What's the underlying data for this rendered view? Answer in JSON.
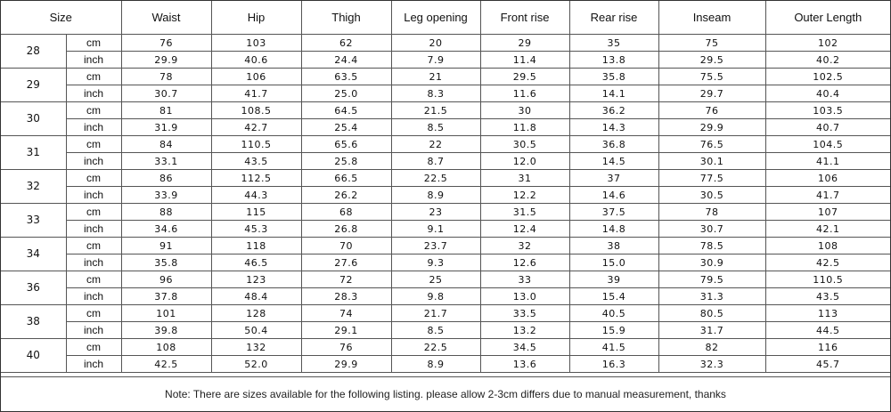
{
  "headers": [
    "Size",
    "Waist",
    "Hip",
    "Thigh",
    "Leg opening",
    "Front rise",
    "Rear rise",
    "Inseam",
    "Outer Length"
  ],
  "unit_labels": {
    "cm": "cm",
    "inch": "inch"
  },
  "rows": [
    {
      "size": "28",
      "cm": [
        "76",
        "103",
        "62",
        "20",
        "29",
        "35",
        "75",
        "102"
      ],
      "inch": [
        "29.9",
        "40.6",
        "24.4",
        "7.9",
        "11.4",
        "13.8",
        "29.5",
        "40.2"
      ]
    },
    {
      "size": "29",
      "cm": [
        "78",
        "106",
        "63.5",
        "21",
        "29.5",
        "35.8",
        "75.5",
        "102.5"
      ],
      "inch": [
        "30.7",
        "41.7",
        "25.0",
        "8.3",
        "11.6",
        "14.1",
        "29.7",
        "40.4"
      ]
    },
    {
      "size": "30",
      "cm": [
        "81",
        "108.5",
        "64.5",
        "21.5",
        "30",
        "36.2",
        "76",
        "103.5"
      ],
      "inch": [
        "31.9",
        "42.7",
        "25.4",
        "8.5",
        "11.8",
        "14.3",
        "29.9",
        "40.7"
      ]
    },
    {
      "size": "31",
      "cm": [
        "84",
        "110.5",
        "65.6",
        "22",
        "30.5",
        "36.8",
        "76.5",
        "104.5"
      ],
      "inch": [
        "33.1",
        "43.5",
        "25.8",
        "8.7",
        "12.0",
        "14.5",
        "30.1",
        "41.1"
      ]
    },
    {
      "size": "32",
      "cm": [
        "86",
        "112.5",
        "66.5",
        "22.5",
        "31",
        "37",
        "77.5",
        "106"
      ],
      "inch": [
        "33.9",
        "44.3",
        "26.2",
        "8.9",
        "12.2",
        "14.6",
        "30.5",
        "41.7"
      ]
    },
    {
      "size": "33",
      "cm": [
        "88",
        "115",
        "68",
        "23",
        "31.5",
        "37.5",
        "78",
        "107"
      ],
      "inch": [
        "34.6",
        "45.3",
        "26.8",
        "9.1",
        "12.4",
        "14.8",
        "30.7",
        "42.1"
      ]
    },
    {
      "size": "34",
      "cm": [
        "91",
        "118",
        "70",
        "23.7",
        "32",
        "38",
        "78.5",
        "108"
      ],
      "inch": [
        "35.8",
        "46.5",
        "27.6",
        "9.3",
        "12.6",
        "15.0",
        "30.9",
        "42.5"
      ]
    },
    {
      "size": "36",
      "cm": [
        "96",
        "123",
        "72",
        "25",
        "33",
        "39",
        "79.5",
        "110.5"
      ],
      "inch": [
        "37.8",
        "48.4",
        "28.3",
        "9.8",
        "13.0",
        "15.4",
        "31.3",
        "43.5"
      ]
    },
    {
      "size": "38",
      "cm": [
        "101",
        "128",
        "74",
        "21.7",
        "33.5",
        "40.5",
        "80.5",
        "113"
      ],
      "inch": [
        "39.8",
        "50.4",
        "29.1",
        "8.5",
        "13.2",
        "15.9",
        "31.7",
        "44.5"
      ]
    },
    {
      "size": "40",
      "cm": [
        "108",
        "132",
        "76",
        "22.5",
        "34.5",
        "41.5",
        "82",
        "116"
      ],
      "inch": [
        "42.5",
        "52.0",
        "29.9",
        "8.9",
        "13.6",
        "16.3",
        "32.3",
        "45.7"
      ]
    }
  ],
  "note": "Note: There are sizes available for the following listing. please allow 2-3cm differs due to manual measurement, thanks"
}
